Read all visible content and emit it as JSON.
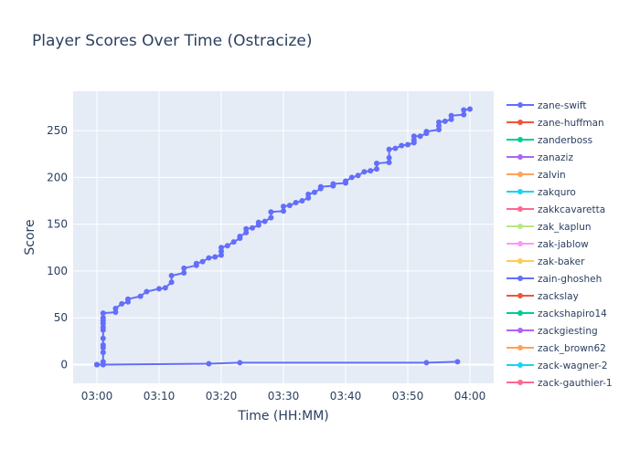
{
  "chart_data": {
    "type": "line",
    "title": "Player Scores Over Time (Ostracize)",
    "xlabel": "Time (HH:MM)",
    "ylabel": "Score",
    "x_ticks": [
      "03:00",
      "03:10",
      "03:20",
      "03:30",
      "03:40",
      "03:50",
      "04:00"
    ],
    "y_ticks": [
      0,
      50,
      100,
      150,
      200,
      250
    ],
    "xlim": [
      "03:00",
      "04:00"
    ],
    "ylim": [
      -20,
      292
    ],
    "grid": true,
    "legend_position": "right",
    "plot_background": "#e5ecf6",
    "series": [
      {
        "name": "zane-swift",
        "color": "#636efa",
        "points": [
          [
            "03:00",
            0
          ],
          [
            "03:01",
            0
          ],
          [
            "03:01",
            3
          ],
          [
            "03:01",
            13
          ],
          [
            "03:01",
            18
          ],
          [
            "03:01",
            21
          ],
          [
            "03:01",
            28
          ],
          [
            "03:01",
            37
          ],
          [
            "03:01",
            40
          ],
          [
            "03:01",
            44
          ],
          [
            "03:01",
            47
          ],
          [
            "03:01",
            50
          ],
          [
            "03:01",
            55
          ],
          [
            "03:03",
            56
          ],
          [
            "03:03",
            60
          ],
          [
            "03:04",
            65
          ],
          [
            "03:05",
            67
          ],
          [
            "03:05",
            70
          ],
          [
            "03:07",
            73
          ],
          [
            "03:08",
            78
          ],
          [
            "03:10",
            81
          ],
          [
            "03:11",
            82
          ],
          [
            "03:12",
            88
          ],
          [
            "03:12",
            95
          ],
          [
            "03:14",
            98
          ],
          [
            "03:14",
            103
          ],
          [
            "03:16",
            106
          ],
          [
            "03:16",
            108
          ],
          [
            "03:17",
            110
          ],
          [
            "03:18",
            114
          ],
          [
            "03:19",
            115
          ],
          [
            "03:20",
            117
          ],
          [
            "03:20",
            121
          ],
          [
            "03:20",
            125
          ],
          [
            "03:21",
            127
          ],
          [
            "03:22",
            131
          ],
          [
            "03:23",
            135
          ],
          [
            "03:23",
            137
          ],
          [
            "03:24",
            141
          ],
          [
            "03:24",
            145
          ],
          [
            "03:25",
            146
          ],
          [
            "03:26",
            149
          ],
          [
            "03:26",
            152
          ],
          [
            "03:27",
            153
          ],
          [
            "03:28",
            157
          ],
          [
            "03:28",
            163
          ],
          [
            "03:30",
            164
          ],
          [
            "03:30",
            169
          ],
          [
            "03:31",
            170
          ],
          [
            "03:32",
            173
          ],
          [
            "03:33",
            175
          ],
          [
            "03:34",
            178
          ],
          [
            "03:34",
            182
          ],
          [
            "03:35",
            184
          ],
          [
            "03:36",
            188
          ],
          [
            "03:36",
            190
          ],
          [
            "03:38",
            191
          ],
          [
            "03:38",
            193
          ],
          [
            "03:40",
            194
          ],
          [
            "03:40",
            196
          ],
          [
            "03:41",
            200
          ],
          [
            "03:42",
            202
          ],
          [
            "03:43",
            206
          ],
          [
            "03:44",
            207
          ],
          [
            "03:45",
            209
          ],
          [
            "03:45",
            215
          ],
          [
            "03:47",
            216
          ],
          [
            "03:47",
            221
          ],
          [
            "03:47",
            230
          ],
          [
            "03:48",
            231
          ],
          [
            "03:49",
            234
          ],
          [
            "03:50",
            235
          ],
          [
            "03:51",
            237
          ],
          [
            "03:51",
            240
          ],
          [
            "03:51",
            244
          ],
          [
            "03:52",
            244
          ],
          [
            "03:53",
            247
          ],
          [
            "03:53",
            249
          ],
          [
            "03:55",
            251
          ],
          [
            "03:55",
            255
          ],
          [
            "03:55",
            259
          ],
          [
            "03:56",
            260
          ],
          [
            "03:57",
            262
          ],
          [
            "03:57",
            266
          ],
          [
            "03:59",
            267
          ],
          [
            "03:59",
            272
          ],
          [
            "04:00",
            273
          ]
        ]
      },
      {
        "name": "zain-ghosheh",
        "color": "#636efa",
        "points": [
          [
            "03:00",
            0
          ],
          [
            "03:01",
            0
          ],
          [
            "03:18",
            1
          ],
          [
            "03:23",
            2
          ],
          [
            "03:53",
            2
          ],
          [
            "03:58",
            3
          ]
        ]
      }
    ],
    "legend": [
      {
        "name": "zane-swift",
        "color": "#636efa"
      },
      {
        "name": "zane-huffman",
        "color": "#ef553b"
      },
      {
        "name": "zanderboss",
        "color": "#00cc96"
      },
      {
        "name": "zanaziz",
        "color": "#ab63fa"
      },
      {
        "name": "zalvin",
        "color": "#ffa15a"
      },
      {
        "name": "zakquro",
        "color": "#19d3f3"
      },
      {
        "name": "zakkcavaretta",
        "color": "#ff6692"
      },
      {
        "name": "zak_kaplun",
        "color": "#b6e880"
      },
      {
        "name": "zak-jablow",
        "color": "#ff97ff"
      },
      {
        "name": "zak-baker",
        "color": "#fecb52"
      },
      {
        "name": "zain-ghosheh",
        "color": "#636efa"
      },
      {
        "name": "zackslay",
        "color": "#ef553b"
      },
      {
        "name": "zackshapiro14",
        "color": "#00cc96"
      },
      {
        "name": "zackgiesting",
        "color": "#ab63fa"
      },
      {
        "name": "zack_brown62",
        "color": "#ffa15a"
      },
      {
        "name": "zack-wagner-2",
        "color": "#19d3f3"
      },
      {
        "name": "zack-gauthier-1",
        "color": "#ff6692"
      }
    ],
    "zero_markers": [
      {
        "name": "zane-huffman",
        "color": "#ef553b"
      },
      {
        "name": "zanderboss",
        "color": "#00cc96"
      },
      {
        "name": "zanaziz",
        "color": "#ab63fa"
      },
      {
        "name": "zalvin",
        "color": "#ffa15a"
      },
      {
        "name": "zakquro",
        "color": "#19d3f3"
      },
      {
        "name": "zakkcavaretta",
        "color": "#ff6692"
      },
      {
        "name": "zak_kaplun",
        "color": "#b6e880"
      },
      {
        "name": "zak-jablow",
        "color": "#ff97ff"
      },
      {
        "name": "zak-baker",
        "color": "#fecb52"
      },
      {
        "name": "zackslay",
        "color": "#ef553b"
      },
      {
        "name": "zackshapiro14",
        "color": "#00cc96"
      },
      {
        "name": "zackgiesting",
        "color": "#ab63fa"
      },
      {
        "name": "zack_brown62",
        "color": "#ffa15a"
      },
      {
        "name": "zack-wagner-2",
        "color": "#19d3f3"
      },
      {
        "name": "zack-gauthier-1",
        "color": "#ff6692"
      }
    ]
  }
}
